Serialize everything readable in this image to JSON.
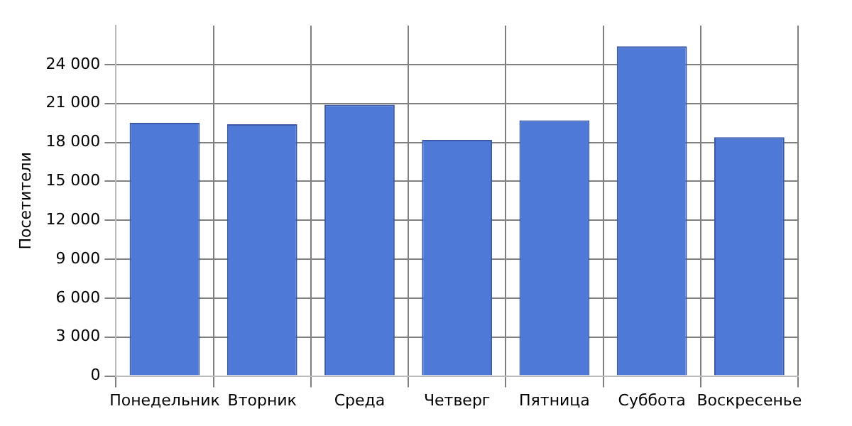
{
  "chart_data": {
    "type": "bar",
    "ylabel": "Посетители",
    "categories": [
      "Понедельник",
      "Вторник",
      "Среда",
      "Четверг",
      "Пятница",
      "Суббота",
      "Воскресенье"
    ],
    "values": [
      19500,
      19400,
      20900,
      18200,
      19700,
      25400,
      18400
    ],
    "color": "#4f79d6",
    "ylim": [
      0,
      27000
    ],
    "yticks": [
      {
        "value": 0,
        "label": "0"
      },
      {
        "value": 3000,
        "label": "3 000"
      },
      {
        "value": 6000,
        "label": "6 000"
      },
      {
        "value": 9000,
        "label": "9 000"
      },
      {
        "value": 12000,
        "label": "12 000"
      },
      {
        "value": 15000,
        "label": "15 000"
      },
      {
        "value": 18000,
        "label": "18 000"
      },
      {
        "value": 21000,
        "label": "21 000"
      },
      {
        "value": 24000,
        "label": "24 000"
      }
    ],
    "grid": true
  }
}
